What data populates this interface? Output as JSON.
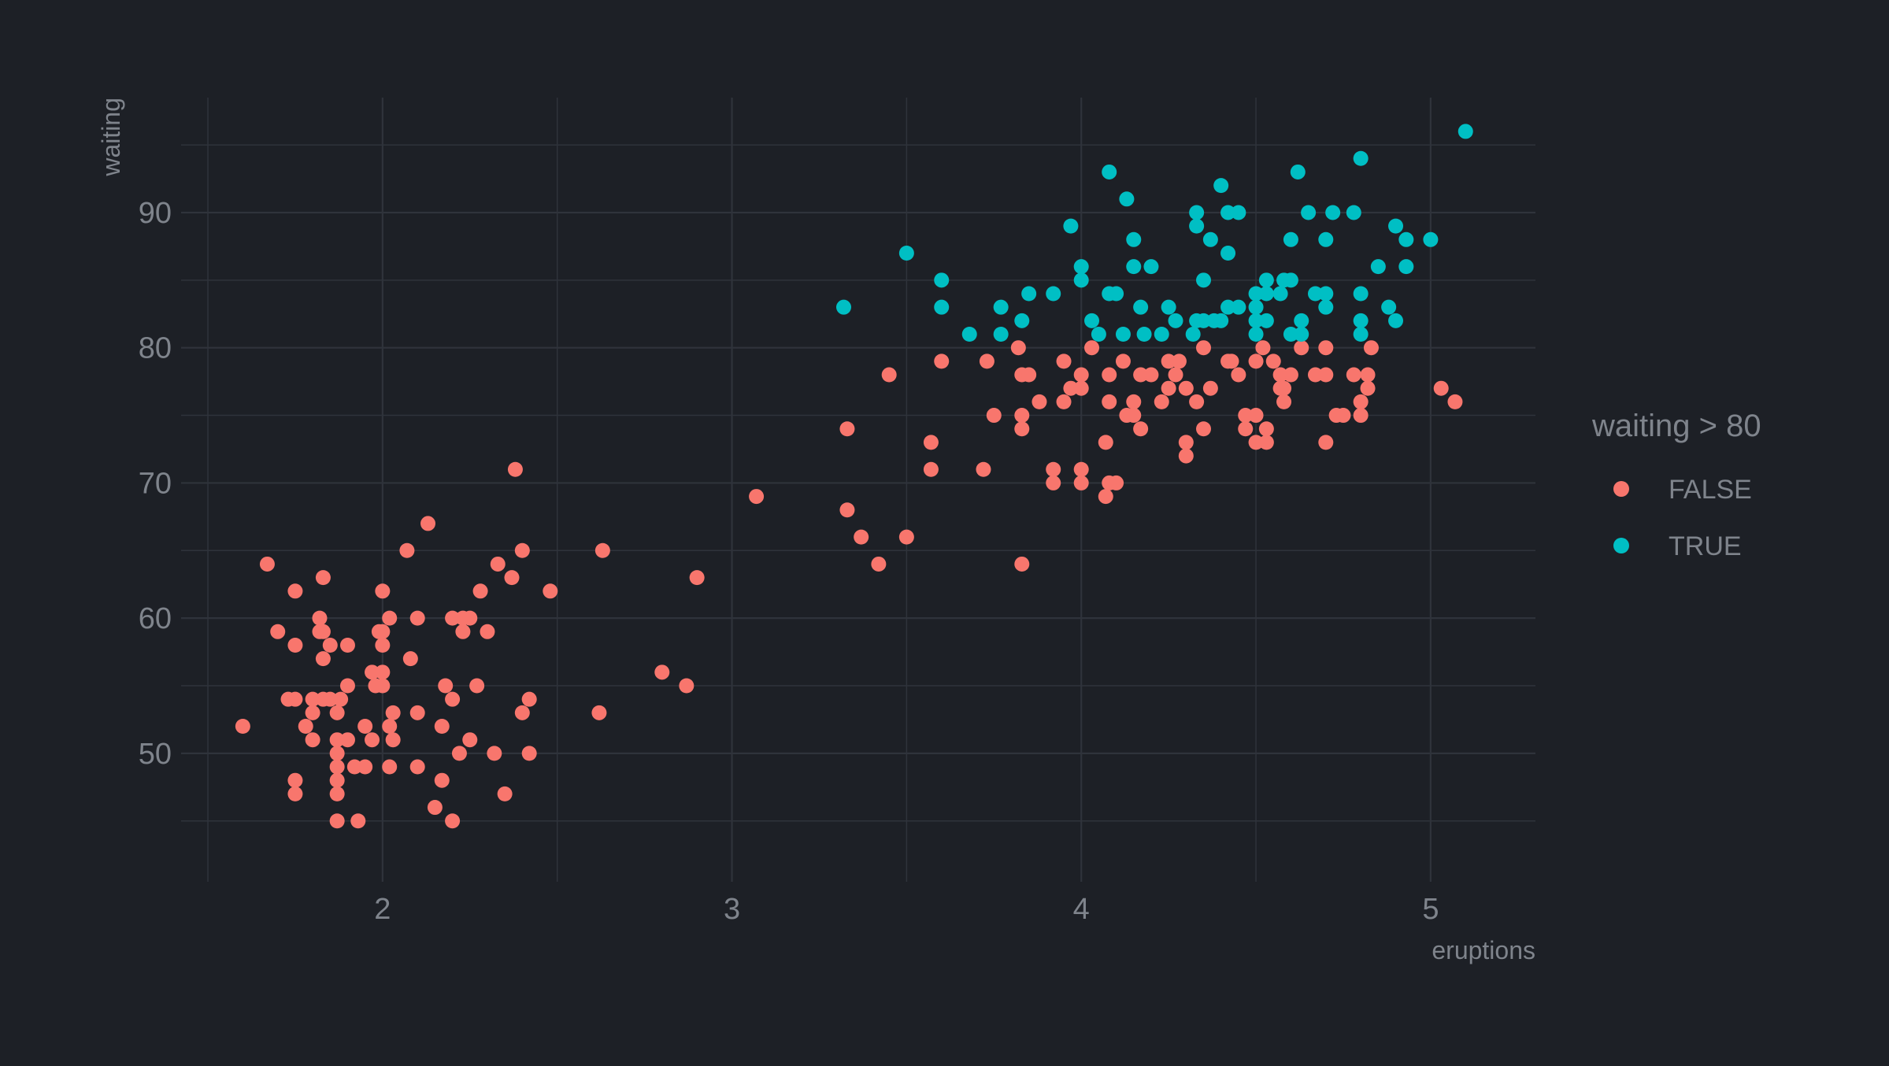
{
  "chart_data": {
    "type": "scatter",
    "title": "",
    "xlabel": "eruptions",
    "ylabel": "waiting",
    "xlim": [
      1.5,
      5.3
    ],
    "ylim": [
      40.5,
      98.5
    ],
    "x_ticks": [
      2,
      3,
      4,
      5
    ],
    "y_ticks": [
      50,
      60,
      70,
      80,
      90
    ],
    "x_tick_labels": [
      "2",
      "3",
      "4",
      "5"
    ],
    "y_tick_labels": [
      "50",
      "60",
      "70",
      "80",
      "90"
    ],
    "grid": true,
    "legend": {
      "title": "waiting > 80",
      "placement": "right"
    },
    "colors": {
      "background": "#1d2026",
      "grid": "#2f333b",
      "text": "#7f848c",
      "FALSE": "#f8766d",
      "TRUE": "#00bfc4"
    },
    "series": [
      {
        "name": "FALSE",
        "color": "#f8766d",
        "points": [
          [
            1.6,
            52
          ],
          [
            1.67,
            64
          ],
          [
            1.7,
            59
          ],
          [
            1.73,
            54
          ],
          [
            1.75,
            54
          ],
          [
            1.75,
            62
          ],
          [
            1.75,
            58
          ],
          [
            1.75,
            48
          ],
          [
            1.75,
            47
          ],
          [
            1.78,
            52
          ],
          [
            1.8,
            54
          ],
          [
            1.8,
            51
          ],
          [
            1.8,
            53
          ],
          [
            1.82,
            59
          ],
          [
            1.82,
            60
          ],
          [
            1.83,
            63
          ],
          [
            1.83,
            59
          ],
          [
            1.83,
            57
          ],
          [
            1.83,
            54
          ],
          [
            1.85,
            58
          ],
          [
            1.85,
            54
          ],
          [
            1.87,
            51
          ],
          [
            1.87,
            53
          ],
          [
            1.87,
            50
          ],
          [
            1.87,
            49
          ],
          [
            1.87,
            48
          ],
          [
            1.87,
            47
          ],
          [
            1.87,
            45
          ],
          [
            1.88,
            54
          ],
          [
            1.9,
            58
          ],
          [
            1.9,
            55
          ],
          [
            1.9,
            51
          ],
          [
            1.92,
            49
          ],
          [
            1.93,
            45
          ],
          [
            1.95,
            52
          ],
          [
            1.95,
            49
          ],
          [
            1.97,
            51
          ],
          [
            1.97,
            56
          ],
          [
            1.98,
            55
          ],
          [
            1.99,
            59
          ],
          [
            2.0,
            62
          ],
          [
            2.0,
            59
          ],
          [
            2.0,
            56
          ],
          [
            2.0,
            58
          ],
          [
            2.0,
            55
          ],
          [
            2.02,
            60
          ],
          [
            2.02,
            52
          ],
          [
            2.02,
            49
          ],
          [
            2.03,
            53
          ],
          [
            2.03,
            51
          ],
          [
            2.07,
            65
          ],
          [
            2.08,
            57
          ],
          [
            2.1,
            60
          ],
          [
            2.1,
            53
          ],
          [
            2.1,
            49
          ],
          [
            2.13,
            67
          ],
          [
            2.15,
            46
          ],
          [
            2.17,
            52
          ],
          [
            2.17,
            48
          ],
          [
            2.18,
            55
          ],
          [
            2.2,
            60
          ],
          [
            2.2,
            54
          ],
          [
            2.2,
            45
          ],
          [
            2.22,
            50
          ],
          [
            2.23,
            59
          ],
          [
            2.23,
            60
          ],
          [
            2.25,
            60
          ],
          [
            2.25,
            51
          ],
          [
            2.27,
            55
          ],
          [
            2.28,
            62
          ],
          [
            2.3,
            59
          ],
          [
            2.32,
            50
          ],
          [
            2.33,
            64
          ],
          [
            2.35,
            47
          ],
          [
            2.37,
            63
          ],
          [
            2.38,
            71
          ],
          [
            2.4,
            65
          ],
          [
            2.4,
            53
          ],
          [
            2.42,
            54
          ],
          [
            2.42,
            50
          ],
          [
            2.48,
            62
          ],
          [
            2.62,
            53
          ],
          [
            2.63,
            65
          ],
          [
            2.8,
            56
          ],
          [
            2.87,
            55
          ],
          [
            2.9,
            63
          ],
          [
            3.07,
            69
          ],
          [
            3.33,
            68
          ],
          [
            3.33,
            74
          ],
          [
            3.37,
            66
          ],
          [
            3.42,
            64
          ],
          [
            3.45,
            78
          ],
          [
            3.5,
            66
          ],
          [
            3.57,
            73
          ],
          [
            3.57,
            71
          ],
          [
            3.6,
            79
          ],
          [
            3.72,
            71
          ],
          [
            3.73,
            79
          ],
          [
            3.75,
            75
          ],
          [
            3.82,
            80
          ],
          [
            3.83,
            78
          ],
          [
            3.83,
            75
          ],
          [
            3.83,
            74
          ],
          [
            3.83,
            64
          ],
          [
            3.85,
            78
          ],
          [
            3.88,
            76
          ],
          [
            3.92,
            71
          ],
          [
            3.92,
            70
          ],
          [
            3.95,
            79
          ],
          [
            3.95,
            76
          ],
          [
            3.97,
            77
          ],
          [
            4.0,
            77
          ],
          [
            4.0,
            78
          ],
          [
            4.0,
            71
          ],
          [
            4.0,
            70
          ],
          [
            4.03,
            80
          ],
          [
            4.07,
            73
          ],
          [
            4.07,
            69
          ],
          [
            4.08,
            78
          ],
          [
            4.08,
            76
          ],
          [
            4.08,
            70
          ],
          [
            4.1,
            70
          ],
          [
            4.12,
            79
          ],
          [
            4.13,
            75
          ],
          [
            4.15,
            76
          ],
          [
            4.15,
            75
          ],
          [
            4.17,
            78
          ],
          [
            4.17,
            74
          ],
          [
            4.2,
            78
          ],
          [
            4.23,
            76
          ],
          [
            4.25,
            79
          ],
          [
            4.25,
            77
          ],
          [
            4.27,
            78
          ],
          [
            4.28,
            79
          ],
          [
            4.3,
            77
          ],
          [
            4.3,
            73
          ],
          [
            4.3,
            72
          ],
          [
            4.33,
            76
          ],
          [
            4.35,
            80
          ],
          [
            4.35,
            74
          ],
          [
            4.37,
            77
          ],
          [
            4.42,
            79
          ],
          [
            4.43,
            79
          ],
          [
            4.45,
            78
          ],
          [
            4.47,
            75
          ],
          [
            4.47,
            74
          ],
          [
            4.5,
            79
          ],
          [
            4.5,
            75
          ],
          [
            4.5,
            73
          ],
          [
            4.52,
            80
          ],
          [
            4.53,
            74
          ],
          [
            4.53,
            73
          ],
          [
            4.55,
            79
          ],
          [
            4.57,
            78
          ],
          [
            4.57,
            77
          ],
          [
            4.58,
            77
          ],
          [
            4.58,
            76
          ],
          [
            4.6,
            78
          ],
          [
            4.63,
            80
          ],
          [
            4.67,
            78
          ],
          [
            4.7,
            80
          ],
          [
            4.7,
            78
          ],
          [
            4.7,
            73
          ],
          [
            4.73,
            75
          ],
          [
            4.75,
            75
          ],
          [
            4.78,
            78
          ],
          [
            4.8,
            76
          ],
          [
            4.8,
            75
          ],
          [
            4.82,
            78
          ],
          [
            4.82,
            77
          ],
          [
            4.83,
            80
          ],
          [
            5.03,
            77
          ],
          [
            5.07,
            76
          ]
        ]
      },
      {
        "name": "TRUE",
        "color": "#00bfc4",
        "points": [
          [
            3.32,
            83
          ],
          [
            3.5,
            87
          ],
          [
            3.6,
            85
          ],
          [
            3.6,
            83
          ],
          [
            3.68,
            81
          ],
          [
            3.77,
            83
          ],
          [
            3.77,
            81
          ],
          [
            3.83,
            82
          ],
          [
            3.85,
            84
          ],
          [
            3.92,
            84
          ],
          [
            3.97,
            89
          ],
          [
            4.0,
            86
          ],
          [
            4.0,
            85
          ],
          [
            4.03,
            82
          ],
          [
            4.05,
            81
          ],
          [
            4.08,
            93
          ],
          [
            4.08,
            84
          ],
          [
            4.1,
            84
          ],
          [
            4.12,
            81
          ],
          [
            4.13,
            91
          ],
          [
            4.15,
            88
          ],
          [
            4.15,
            86
          ],
          [
            4.17,
            83
          ],
          [
            4.18,
            81
          ],
          [
            4.2,
            86
          ],
          [
            4.23,
            81
          ],
          [
            4.25,
            83
          ],
          [
            4.27,
            82
          ],
          [
            4.32,
            81
          ],
          [
            4.33,
            90
          ],
          [
            4.33,
            89
          ],
          [
            4.33,
            82
          ],
          [
            4.35,
            85
          ],
          [
            4.35,
            82
          ],
          [
            4.37,
            88
          ],
          [
            4.38,
            82
          ],
          [
            4.4,
            82
          ],
          [
            4.4,
            92
          ],
          [
            4.42,
            90
          ],
          [
            4.42,
            87
          ],
          [
            4.42,
            83
          ],
          [
            4.45,
            90
          ],
          [
            4.45,
            83
          ],
          [
            4.5,
            84
          ],
          [
            4.5,
            83
          ],
          [
            4.5,
            82
          ],
          [
            4.5,
            81
          ],
          [
            4.53,
            85
          ],
          [
            4.53,
            84
          ],
          [
            4.53,
            82
          ],
          [
            4.57,
            84
          ],
          [
            4.58,
            85
          ],
          [
            4.6,
            85
          ],
          [
            4.6,
            88
          ],
          [
            4.6,
            81
          ],
          [
            4.62,
            93
          ],
          [
            4.63,
            82
          ],
          [
            4.63,
            81
          ],
          [
            4.65,
            90
          ],
          [
            4.67,
            84
          ],
          [
            4.7,
            88
          ],
          [
            4.7,
            84
          ],
          [
            4.7,
            83
          ],
          [
            4.72,
            90
          ],
          [
            4.78,
            90
          ],
          [
            4.8,
            94
          ],
          [
            4.8,
            84
          ],
          [
            4.8,
            82
          ],
          [
            4.8,
            81
          ],
          [
            4.85,
            86
          ],
          [
            4.88,
            83
          ],
          [
            4.9,
            89
          ],
          [
            4.9,
            82
          ],
          [
            4.93,
            88
          ],
          [
            4.93,
            86
          ],
          [
            5.0,
            88
          ],
          [
            5.1,
            96
          ]
        ]
      }
    ]
  }
}
